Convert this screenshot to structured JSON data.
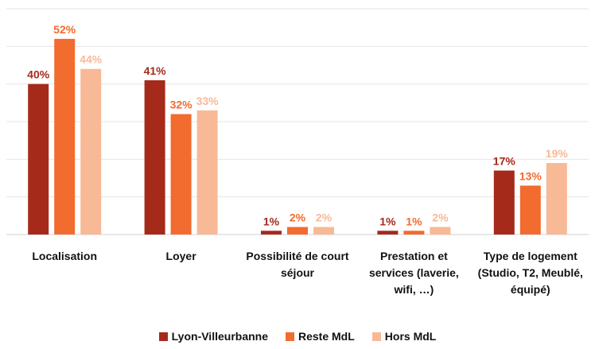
{
  "chart_data": {
    "type": "bar",
    "categories": [
      "Localisation",
      "Loyer",
      "Possibilité de court séjour",
      "Prestation et services (laverie, wifi, …)",
      "Type de logement (Studio, T2, Meublé, équipé)"
    ],
    "series": [
      {
        "name": "Lyon-Villeurbanne",
        "color": "#a52a1a",
        "values": [
          40,
          41,
          1,
          1,
          17
        ],
        "value_labels": [
          "40%",
          "41%",
          "1%",
          "1%",
          "17%"
        ]
      },
      {
        "name": "Reste MdL",
        "color": "#f26b2f",
        "values": [
          52,
          32,
          2,
          1,
          13
        ],
        "value_labels": [
          "52%",
          "32%",
          "2%",
          "1%",
          "13%"
        ]
      },
      {
        "name": "Hors MdL",
        "color": "#f8b996",
        "values": [
          44,
          33,
          2,
          2,
          19
        ],
        "value_labels": [
          "44%",
          "33%",
          "2%",
          "2%",
          "19%"
        ]
      }
    ],
    "ylim": [
      0,
      60
    ],
    "yticks": [
      0,
      10,
      20,
      30,
      40,
      50,
      60
    ],
    "grid": true,
    "legend": "bottom"
  }
}
